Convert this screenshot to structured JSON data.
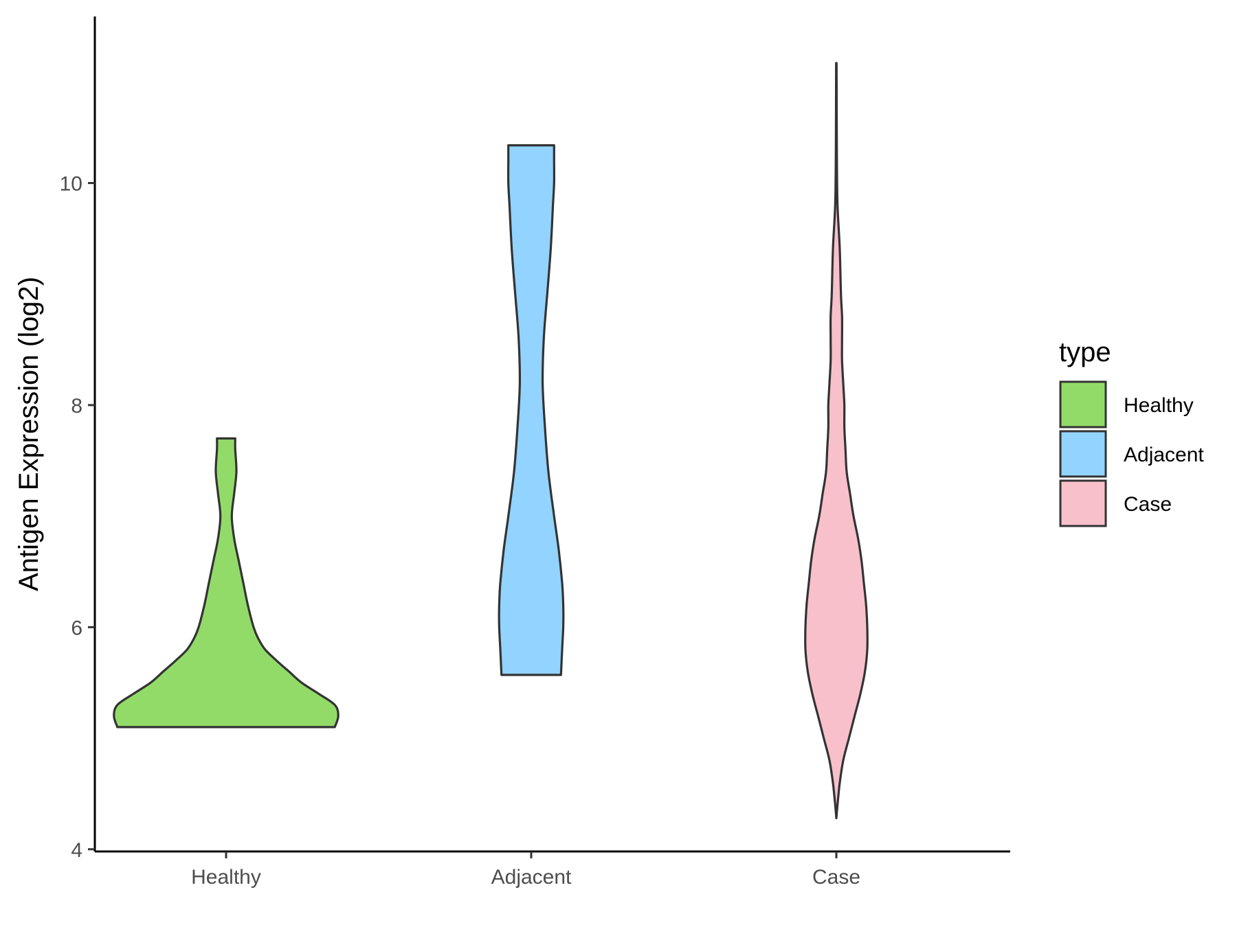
{
  "chart_data": {
    "type": "violin",
    "categories": [
      "Healthy",
      "Adjacent",
      "Case"
    ],
    "ylabel": "Antigen Expression (log2)",
    "xlabel": "",
    "ylim": [
      3.98,
      11.5
    ],
    "yticks": [
      4,
      6,
      8,
      10
    ],
    "legend": {
      "title": "type",
      "position": "right"
    },
    "grid": false,
    "series": [
      {
        "name": "Healthy",
        "color": "#93DB69",
        "min": 5.1,
        "max": 7.7,
        "density": [
          [
            5.1,
            0.95
          ],
          [
            5.2,
            0.98
          ],
          [
            5.3,
            0.95
          ],
          [
            5.4,
            0.81
          ],
          [
            5.5,
            0.66
          ],
          [
            5.6,
            0.55
          ],
          [
            5.7,
            0.44
          ],
          [
            5.8,
            0.34
          ],
          [
            5.9,
            0.28
          ],
          [
            6.0,
            0.24
          ],
          [
            6.2,
            0.19
          ],
          [
            6.4,
            0.15
          ],
          [
            6.6,
            0.11
          ],
          [
            6.8,
            0.07
          ],
          [
            7.0,
            0.05
          ],
          [
            7.2,
            0.07
          ],
          [
            7.4,
            0.09
          ],
          [
            7.6,
            0.08
          ],
          [
            7.7,
            0.08
          ]
        ]
      },
      {
        "name": "Adjacent",
        "color": "#92D3FF",
        "min": 5.57,
        "max": 10.34,
        "density": [
          [
            5.57,
            0.26
          ],
          [
            5.8,
            0.27
          ],
          [
            6.0,
            0.28
          ],
          [
            6.2,
            0.28
          ],
          [
            6.4,
            0.27
          ],
          [
            6.7,
            0.24
          ],
          [
            7.0,
            0.2
          ],
          [
            7.4,
            0.15
          ],
          [
            7.8,
            0.12
          ],
          [
            8.2,
            0.1
          ],
          [
            8.6,
            0.11
          ],
          [
            9.0,
            0.14
          ],
          [
            9.4,
            0.17
          ],
          [
            9.8,
            0.19
          ],
          [
            10.0,
            0.2
          ],
          [
            10.2,
            0.2
          ],
          [
            10.34,
            0.2
          ]
        ]
      },
      {
        "name": "Case",
        "color": "#F8C0CB",
        "min": 4.28,
        "max": 11.08,
        "density": [
          [
            4.28,
            0.0
          ],
          [
            4.4,
            0.01
          ],
          [
            4.6,
            0.03
          ],
          [
            4.8,
            0.06
          ],
          [
            5.0,
            0.11
          ],
          [
            5.2,
            0.16
          ],
          [
            5.4,
            0.21
          ],
          [
            5.6,
            0.25
          ],
          [
            5.8,
            0.27
          ],
          [
            6.0,
            0.27
          ],
          [
            6.2,
            0.26
          ],
          [
            6.4,
            0.24
          ],
          [
            6.6,
            0.22
          ],
          [
            6.8,
            0.19
          ],
          [
            7.0,
            0.15
          ],
          [
            7.2,
            0.12
          ],
          [
            7.4,
            0.09
          ],
          [
            7.6,
            0.08
          ],
          [
            7.8,
            0.07
          ],
          [
            8.0,
            0.07
          ],
          [
            8.2,
            0.06
          ],
          [
            8.4,
            0.05
          ],
          [
            8.6,
            0.05
          ],
          [
            8.8,
            0.05
          ],
          [
            9.0,
            0.04
          ],
          [
            9.4,
            0.03
          ],
          [
            9.8,
            0.01
          ],
          [
            10.2,
            0.005
          ],
          [
            10.6,
            0.003
          ],
          [
            11.08,
            0.002
          ]
        ]
      }
    ]
  }
}
